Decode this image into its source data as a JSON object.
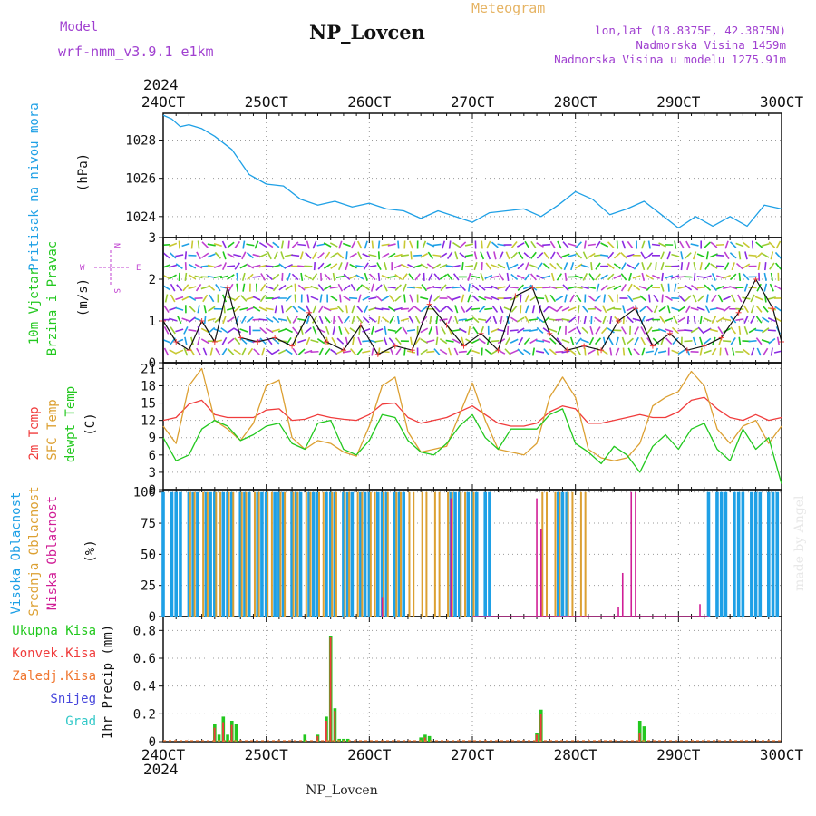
{
  "header": {
    "model_label": "Model",
    "model_name": "wrf-nmm_v3.9.1 e1km",
    "station": "NP_Lovcen",
    "meteogram_label": "Meteogram",
    "lonlat": "lon,lat (18.8375E, 42.3875N)",
    "altitude": "Nadmorska Visina 1459m",
    "model_altitude": "Nadmorska Visina u modelu 1275.91m",
    "year": "2024",
    "footer_station": "NP_Lovcen",
    "watermark": "made by Angel"
  },
  "colors": {
    "pressure": "#1ea0e6",
    "wind_label": "#22c81e",
    "wind_compass": "#c040d0",
    "temp2m": "#f03c3c",
    "sfc": "#dca032",
    "dew": "#22c81e",
    "high_cloud": "#1ea0e6",
    "mid_cloud": "#dca032",
    "low_cloud": "#d01e96",
    "total_precip": "#22c81e",
    "convective": "#f03c3c",
    "frozen": "#f07832",
    "snow": "#4646dc",
    "graupel": "#32c8c8",
    "header_purple": "#a040d0",
    "meteogram_orange": "#e6b464"
  },
  "chart_data": [
    {
      "type": "line",
      "title": "",
      "xlabel": "",
      "ylabel_left": "Pritisak na nivou mora",
      "unit": "(hPa)",
      "x_categories": [
        "24OCT",
        "25OCT",
        "26OCT",
        "27OCT",
        "28OCT",
        "29OCT",
        "30OCT"
      ],
      "ylim": [
        1022.9,
        1029.4
      ],
      "yticks": [
        1024,
        1026,
        1028
      ],
      "x_hours": [
        0,
        2,
        4,
        6,
        9,
        12,
        16,
        20,
        24,
        28,
        32,
        36,
        40,
        44,
        48,
        52,
        56,
        60,
        64,
        68,
        72,
        76,
        80,
        84,
        88,
        92,
        96,
        100,
        104,
        108,
        112,
        116,
        120,
        124,
        128,
        132,
        136,
        140,
        144
      ],
      "series": [
        {
          "values": [
            1029.3,
            1029.1,
            1028.7,
            1028.8,
            1028.6,
            1028.2,
            1027.5,
            1026.2,
            1025.7,
            1025.6,
            1024.9,
            1024.6,
            1024.8,
            1024.5,
            1024.7,
            1024.4,
            1024.3,
            1023.9,
            1024.3,
            1024.0,
            1023.7,
            1024.2,
            1024.3,
            1024.4,
            1024.0,
            1024.6,
            1025.3,
            1024.9,
            1024.1,
            1024.4,
            1024.8,
            1024.1,
            1023.4,
            1024.0,
            1023.5,
            1024.0,
            1023.5,
            1024.6,
            1024.4
          ]
        }
      ]
    },
    {
      "type": "line",
      "title": "",
      "ylabel_left": "10m Vjetar",
      "ylabel_left2": "Brzina i Pravac",
      "unit": "(m/s)",
      "compass": {
        "n": "N",
        "s": "S",
        "w": "W",
        "e": "E"
      },
      "ylim": [
        0,
        3
      ],
      "yticks": [
        0,
        1,
        2,
        3
      ],
      "x_hours": [
        0,
        3,
        6,
        9,
        12,
        15,
        18,
        22,
        26,
        30,
        34,
        38,
        42,
        46,
        50,
        54,
        58,
        62,
        66,
        70,
        74,
        78,
        82,
        86,
        90,
        94,
        98,
        102,
        106,
        110,
        114,
        118,
        122,
        126,
        130,
        134,
        138,
        142,
        144
      ],
      "series": [
        {
          "values": [
            1.0,
            0.5,
            0.3,
            1.0,
            0.5,
            1.8,
            0.6,
            0.5,
            0.6,
            0.4,
            1.2,
            0.5,
            0.3,
            0.9,
            0.2,
            0.4,
            0.3,
            1.4,
            0.9,
            0.4,
            0.7,
            0.3,
            1.6,
            1.8,
            0.7,
            0.3,
            0.4,
            0.3,
            1.0,
            1.3,
            0.4,
            0.7,
            0.3,
            0.4,
            0.6,
            1.2,
            2.0,
            1.3,
            0.5
          ]
        }
      ]
    },
    {
      "type": "line",
      "title": "",
      "ylabel_left": "2m Temp",
      "ylabel_left2": "SFC Temp",
      "ylabel_left3": "dewpt Temp",
      "unit": "(C)",
      "ylim": [
        0,
        22
      ],
      "yticks": [
        0,
        3,
        6,
        9,
        12,
        15,
        18,
        21
      ],
      "x_hours": [
        0,
        3,
        6,
        9,
        12,
        15,
        18,
        21,
        24,
        27,
        30,
        33,
        36,
        39,
        42,
        45,
        48,
        51,
        54,
        57,
        60,
        63,
        66,
        69,
        72,
        75,
        78,
        81,
        84,
        87,
        90,
        93,
        96,
        99,
        102,
        105,
        108,
        111,
        114,
        117,
        120,
        123,
        126,
        129,
        132,
        135,
        138,
        141,
        144
      ],
      "series": [
        {
          "name": "2m Temp",
          "values": [
            12.0,
            12.5,
            14.8,
            15.5,
            13.0,
            12.5,
            12.5,
            12.5,
            13.8,
            14.0,
            12.0,
            12.2,
            13.0,
            12.5,
            12.2,
            12.0,
            13.0,
            14.8,
            15.0,
            12.5,
            11.5,
            12.0,
            12.5,
            13.5,
            14.5,
            13.0,
            11.5,
            11.0,
            11.0,
            11.5,
            13.5,
            14.5,
            14.0,
            11.5,
            11.5,
            12.0,
            12.5,
            13.0,
            12.5,
            12.5,
            13.5,
            15.5,
            16.0,
            14.0,
            12.5,
            12.0,
            13.0,
            12.0,
            12.5
          ]
        },
        {
          "name": "SFC Temp",
          "values": [
            11.0,
            8.0,
            18.0,
            21.0,
            12.0,
            10.5,
            8.5,
            11.5,
            18.0,
            19.0,
            9.0,
            7.0,
            8.5,
            8.0,
            6.5,
            5.8,
            11.0,
            18.0,
            19.5,
            10.0,
            6.5,
            7.0,
            7.5,
            13.0,
            18.5,
            12.0,
            7.0,
            6.5,
            6.0,
            8.0,
            16.0,
            19.5,
            16.0,
            7.0,
            5.5,
            5.0,
            5.5,
            8.0,
            14.5,
            16.0,
            17.0,
            20.5,
            18.0,
            10.5,
            8.0,
            11.0,
            12.0,
            8.0,
            11.0
          ]
        },
        {
          "name": "dewpt Temp",
          "values": [
            9.0,
            5.0,
            6.0,
            10.5,
            12.0,
            11.0,
            8.5,
            9.5,
            11.0,
            11.5,
            8.0,
            7.0,
            11.5,
            12.0,
            7.0,
            6.0,
            8.5,
            13.0,
            12.5,
            8.5,
            6.5,
            6.0,
            8.0,
            11.0,
            13.0,
            9.0,
            7.0,
            10.5,
            10.5,
            10.5,
            13.0,
            14.0,
            8.0,
            6.5,
            4.5,
            7.5,
            6.0,
            3.0,
            7.5,
            9.5,
            7.0,
            10.5,
            11.5,
            7.0,
            5.0,
            10.5,
            7.0,
            9.0,
            1.0
          ]
        }
      ]
    },
    {
      "type": "bar",
      "title": "",
      "ylabel_left": "Visoka Oblacnost",
      "ylabel_left2": "Srednja Oblacnost",
      "ylabel_left3": "Niska Oblacnost",
      "unit": "(%)",
      "ylim": [
        0,
        102
      ],
      "yticks": [
        0,
        25,
        50,
        75,
        100
      ],
      "series": [
        {
          "name": "Visoka Oblacnost",
          "ranges_hours": [
            [
              0,
              56
            ],
            [
              66,
              76
            ],
            [
              92,
              95
            ],
            [
              127,
              144
            ]
          ],
          "values_percent": [
            100,
            100,
            100,
            100
          ]
        },
        {
          "name": "Srednja Oblacnost",
          "ranges_hours": [
            [
              6,
              72
            ],
            [
              87,
              99
            ]
          ],
          "values_percent": [
            100,
            100
          ]
        },
        {
          "name": "Niska Oblacnost",
          "hours": [
            51,
            67,
            87,
            88,
            106,
            107,
            109,
            110,
            125
          ],
          "values_percent": [
            15,
            95,
            95,
            70,
            8,
            35,
            100,
            100,
            10
          ]
        }
      ]
    },
    {
      "type": "bar",
      "title": "",
      "ylabel_left": "1hr Precip",
      "unit": "(mm)",
      "ylim": [
        0,
        0.9
      ],
      "yticks": [
        0,
        0.2,
        0.4,
        0.6,
        0.8
      ],
      "legend": [
        "Ukupna Kisa",
        "Konvek.Kisa",
        "Zaledj.Kisa",
        "Snijeg",
        "Grad"
      ],
      "series": [
        {
          "name": "Ukupna Kisa",
          "hours": [
            12,
            13,
            14,
            15,
            16,
            17,
            33,
            36,
            38,
            39,
            40,
            41,
            42,
            43,
            60,
            61,
            62,
            87,
            88,
            111,
            112
          ],
          "values": [
            0.13,
            0.05,
            0.18,
            0.05,
            0.15,
            0.13,
            0.05,
            0.05,
            0.18,
            0.76,
            0.24,
            0.02,
            0.02,
            0.02,
            0.03,
            0.05,
            0.04,
            0.06,
            0.23,
            0.15,
            0.11
          ]
        },
        {
          "name": "Konvek.Kisa",
          "hours": [
            12,
            14,
            16,
            36,
            38,
            39,
            40,
            61,
            87,
            88,
            111
          ],
          "values": [
            0.1,
            0.14,
            0.12,
            0.04,
            0.15,
            0.75,
            0.22,
            0.03,
            0.05,
            0.2,
            0.06
          ]
        }
      ]
    }
  ]
}
